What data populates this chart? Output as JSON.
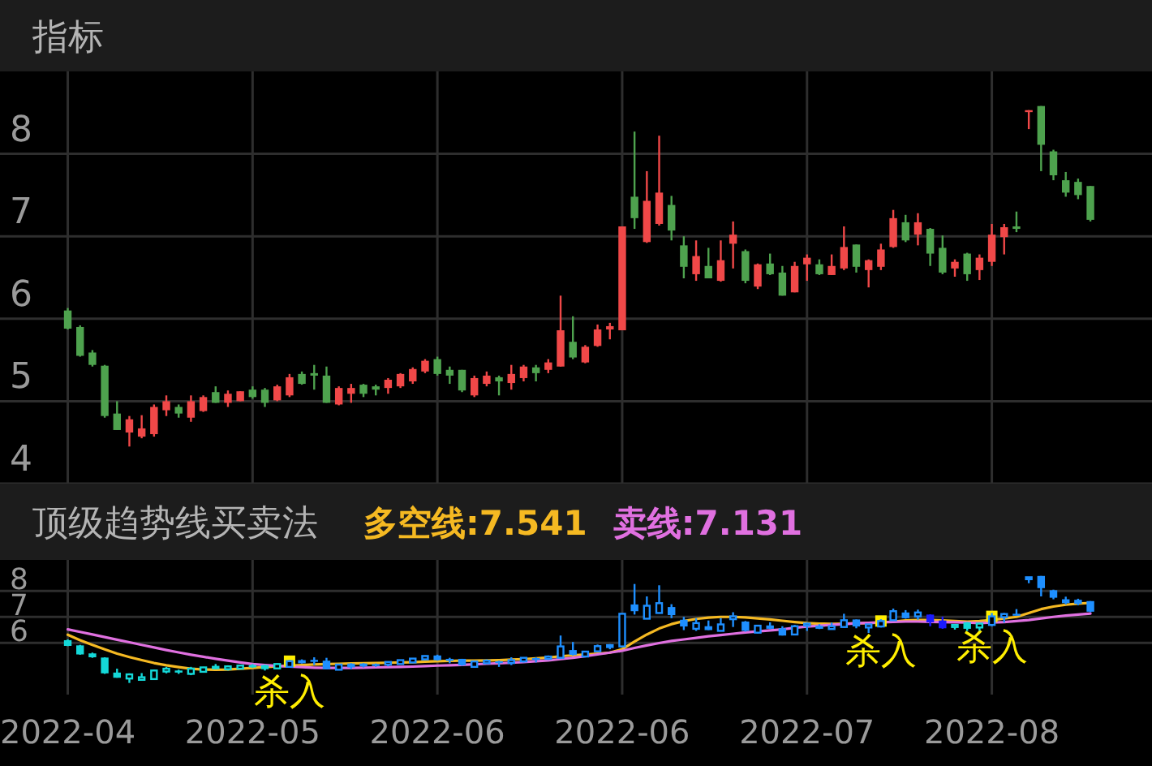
{
  "chart_data": [
    {
      "type": "candlestick",
      "title": "指标",
      "categories": [
        "2022-04",
        null,
        null,
        null,
        null,
        null,
        null,
        null,
        null,
        null,
        null,
        null,
        null,
        null,
        null,
        "2022-05",
        null,
        null,
        null,
        null,
        null,
        null,
        null,
        null,
        null,
        null,
        null,
        null,
        null,
        null,
        "2022-06",
        null,
        null,
        null,
        null,
        null,
        null,
        null,
        null,
        null,
        null,
        null,
        null,
        null,
        null,
        "2022-06",
        null,
        null,
        null,
        null,
        null,
        null,
        null,
        null,
        null,
        null,
        null,
        null,
        null,
        null,
        "2022-07",
        null,
        null,
        null,
        null,
        null,
        null,
        null,
        null,
        null,
        null,
        null,
        null,
        null,
        null,
        "2022-08",
        null,
        null,
        null,
        null,
        null,
        null,
        null,
        null
      ],
      "ohlc": [
        [
          6.1,
          6.13,
          5.87,
          5.88
        ],
        [
          5.9,
          5.92,
          5.54,
          5.55
        ],
        [
          5.59,
          5.62,
          5.42,
          5.44
        ],
        [
          5.43,
          5.44,
          4.8,
          4.82
        ],
        [
          4.85,
          5.0,
          4.65,
          4.65
        ],
        [
          4.62,
          4.82,
          4.45,
          4.78
        ],
        [
          4.57,
          4.83,
          4.55,
          4.67
        ],
        [
          4.6,
          4.96,
          4.57,
          4.93
        ],
        [
          4.89,
          5.07,
          4.82,
          5.0
        ],
        [
          4.93,
          4.96,
          4.8,
          4.85
        ],
        [
          4.8,
          5.07,
          4.75,
          5.0
        ],
        [
          4.88,
          5.07,
          4.87,
          5.05
        ],
        [
          5.11,
          5.18,
          4.98,
          4.98
        ],
        [
          4.98,
          5.13,
          4.93,
          5.09
        ],
        [
          5.0,
          5.12,
          5.0,
          5.12
        ],
        [
          5.14,
          5.18,
          5.03,
          5.05
        ],
        [
          5.14,
          5.16,
          4.93,
          4.98
        ],
        [
          5.01,
          5.2,
          5.0,
          5.18
        ],
        [
          5.07,
          5.33,
          5.05,
          5.29
        ],
        [
          5.33,
          5.36,
          5.2,
          5.21
        ],
        [
          5.34,
          5.44,
          5.14,
          5.31
        ],
        [
          5.31,
          5.42,
          4.98,
          4.98
        ],
        [
          4.96,
          5.18,
          4.95,
          5.16
        ],
        [
          5.09,
          5.21,
          4.98,
          5.16
        ],
        [
          5.2,
          5.21,
          5.05,
          5.09
        ],
        [
          5.18,
          5.2,
          5.07,
          5.14
        ],
        [
          5.16,
          5.28,
          5.09,
          5.26
        ],
        [
          5.18,
          5.34,
          5.16,
          5.33
        ],
        [
          5.24,
          5.41,
          5.21,
          5.39
        ],
        [
          5.36,
          5.51,
          5.34,
          5.49
        ],
        [
          5.51,
          5.54,
          5.31,
          5.33
        ],
        [
          5.38,
          5.42,
          5.21,
          5.31
        ],
        [
          5.38,
          5.38,
          5.11,
          5.13
        ],
        [
          5.07,
          5.31,
          5.05,
          5.28
        ],
        [
          5.21,
          5.36,
          5.18,
          5.31
        ],
        [
          5.29,
          5.31,
          5.07,
          5.24
        ],
        [
          5.22,
          5.44,
          5.14,
          5.33
        ],
        [
          5.28,
          5.44,
          5.24,
          5.42
        ],
        [
          5.41,
          5.44,
          5.24,
          5.34
        ],
        [
          5.38,
          5.51,
          5.34,
          5.47
        ],
        [
          5.42,
          6.28,
          5.42,
          5.86
        ],
        [
          5.72,
          6.03,
          5.51,
          5.53
        ],
        [
          5.47,
          5.68,
          5.46,
          5.66
        ],
        [
          5.67,
          5.93,
          5.66,
          5.87
        ],
        [
          5.87,
          5.95,
          5.75,
          5.91
        ],
        [
          5.86,
          7.12,
          5.86,
          7.12
        ],
        [
          7.48,
          8.27,
          7.09,
          7.22
        ],
        [
          6.93,
          7.79,
          6.92,
          7.43
        ],
        [
          7.15,
          8.22,
          7.13,
          7.53
        ],
        [
          7.38,
          7.49,
          6.95,
          7.07
        ],
        [
          6.89,
          7.0,
          6.49,
          6.63
        ],
        [
          6.54,
          6.95,
          6.46,
          6.76
        ],
        [
          6.64,
          6.86,
          6.49,
          6.49
        ],
        [
          6.46,
          6.95,
          6.45,
          6.71
        ],
        [
          6.91,
          7.18,
          6.61,
          7.02
        ],
        [
          6.82,
          6.84,
          6.43,
          6.46
        ],
        [
          6.39,
          6.67,
          6.36,
          6.66
        ],
        [
          6.67,
          6.79,
          6.53,
          6.54
        ],
        [
          6.56,
          6.64,
          6.28,
          6.28
        ],
        [
          6.32,
          6.69,
          6.32,
          6.64
        ],
        [
          6.66,
          6.78,
          6.46,
          6.74
        ],
        [
          6.66,
          6.72,
          6.53,
          6.54
        ],
        [
          6.53,
          6.78,
          6.53,
          6.64
        ],
        [
          6.61,
          7.12,
          6.59,
          6.87
        ],
        [
          6.9,
          6.9,
          6.56,
          6.63
        ],
        [
          6.59,
          6.72,
          6.38,
          6.71
        ],
        [
          6.63,
          6.91,
          6.59,
          6.84
        ],
        [
          6.87,
          7.32,
          6.86,
          7.22
        ],
        [
          7.17,
          7.26,
          6.93,
          6.95
        ],
        [
          7.02,
          7.28,
          6.89,
          7.17
        ],
        [
          7.09,
          7.1,
          6.64,
          6.79
        ],
        [
          6.86,
          7.01,
          6.54,
          6.56
        ],
        [
          6.61,
          6.72,
          6.51,
          6.69
        ],
        [
          6.79,
          6.8,
          6.46,
          6.54
        ],
        [
          6.59,
          6.78,
          6.47,
          6.74
        ],
        [
          6.69,
          7.15,
          6.64,
          7.02
        ],
        [
          6.99,
          7.15,
          6.78,
          7.11
        ],
        [
          7.12,
          7.3,
          7.05,
          7.09
        ],
        [
          8.51,
          8.53,
          8.3,
          8.53
        ],
        [
          8.58,
          8.58,
          7.79,
          8.11
        ],
        [
          8.03,
          8.05,
          7.68,
          7.74
        ],
        [
          7.68,
          7.78,
          7.48,
          7.53
        ],
        [
          7.66,
          7.7,
          7.45,
          7.5
        ],
        [
          7.61,
          7.61,
          7.18,
          7.2
        ]
      ],
      "colors": [
        "#4ea24e",
        "#4ea24e",
        "#4ea24e",
        "#4ea24e",
        "#4ea24e",
        "#f04848",
        "#f04848",
        "#f04848",
        "#f04848",
        "#4ea24e",
        "#f04848",
        "#f04848",
        "#4ea24e",
        "#f04848",
        "#f04848",
        "#4ea24e",
        "#4ea24e",
        "#f04848",
        "#f04848",
        "#4ea24e",
        "#4ea24e",
        "#4ea24e",
        "#f04848",
        "#f04848",
        "#4ea24e",
        "#4ea24e",
        "#f04848",
        "#f04848",
        "#f04848",
        "#f04848",
        "#4ea24e",
        "#4ea24e",
        "#4ea24e",
        "#f04848",
        "#f04848",
        "#4ea24e",
        "#f04848",
        "#f04848",
        "#4ea24e",
        "#f04848",
        "#f04848",
        "#4ea24e",
        "#f04848",
        "#f04848",
        "#f04848",
        "#f04848",
        "#4ea24e",
        "#f04848",
        "#f04848",
        "#4ea24e",
        "#4ea24e",
        "#f04848",
        "#4ea24e",
        "#f04848",
        "#f04848",
        "#4ea24e",
        "#f04848",
        "#4ea24e",
        "#4ea24e",
        "#f04848",
        "#f04848",
        "#4ea24e",
        "#f04848",
        "#f04848",
        "#4ea24e",
        "#f04848",
        "#f04848",
        "#f04848",
        "#4ea24e",
        "#f04848",
        "#4ea24e",
        "#4ea24e",
        "#f04848",
        "#4ea24e",
        "#f04848",
        "#f04848",
        "#f04848",
        "#4ea24e",
        "#f04848",
        "#4ea24e",
        "#4ea24e",
        "#4ea24e",
        "#4ea24e",
        "#4ea24e"
      ],
      "ylim": [
        4,
        9
      ],
      "yticks": [
        4,
        5,
        6,
        7,
        8
      ],
      "tick_labels": "y",
      "grid": true
    },
    {
      "type": "candlestick",
      "title": "顶级趋势线买卖法",
      "categories": [
        "2022-04",
        null,
        null,
        null,
        null,
        null,
        null,
        null,
        null,
        null,
        null,
        null,
        null,
        null,
        null,
        "2022-05",
        null,
        null,
        null,
        null,
        null,
        null,
        null,
        null,
        null,
        null,
        null,
        null,
        null,
        null,
        "2022-06",
        null,
        null,
        null,
        null,
        null,
        null,
        null,
        null,
        null,
        null,
        null,
        null,
        null,
        null,
        "2022-06",
        null,
        null,
        null,
        null,
        null,
        null,
        null,
        null,
        null,
        null,
        null,
        null,
        null,
        null,
        "2022-07",
        null,
        null,
        null,
        null,
        null,
        null,
        null,
        null,
        null,
        null,
        null,
        null,
        null,
        null,
        "2022-08",
        null,
        null,
        null,
        null,
        null,
        null,
        null,
        null
      ],
      "ohlc": [
        [
          6.1,
          6.13,
          5.87,
          5.88
        ],
        [
          5.9,
          5.92,
          5.54,
          5.55
        ],
        [
          5.59,
          5.62,
          5.42,
          5.44
        ],
        [
          5.43,
          5.44,
          4.8,
          4.82
        ],
        [
          4.85,
          5.0,
          4.65,
          4.65
        ],
        [
          4.62,
          4.82,
          4.45,
          4.78
        ],
        [
          4.57,
          4.83,
          4.55,
          4.67
        ],
        [
          4.6,
          4.96,
          4.57,
          4.93
        ],
        [
          4.89,
          5.07,
          4.82,
          5.0
        ],
        [
          4.93,
          4.96,
          4.8,
          4.85
        ],
        [
          4.8,
          5.07,
          4.75,
          5.0
        ],
        [
          4.88,
          5.07,
          4.87,
          5.05
        ],
        [
          5.11,
          5.18,
          4.98,
          4.98
        ],
        [
          4.98,
          5.13,
          4.93,
          5.09
        ],
        [
          5.0,
          5.12,
          5.0,
          5.12
        ],
        [
          5.14,
          5.18,
          5.03,
          5.05
        ],
        [
          5.14,
          5.16,
          4.93,
          4.98
        ],
        [
          5.01,
          5.2,
          5.0,
          5.18
        ],
        [
          5.07,
          5.33,
          5.05,
          5.29
        ],
        [
          5.33,
          5.36,
          5.2,
          5.21
        ],
        [
          5.34,
          5.44,
          5.14,
          5.31
        ],
        [
          5.31,
          5.42,
          4.98,
          4.98
        ],
        [
          4.96,
          5.18,
          4.95,
          5.16
        ],
        [
          5.09,
          5.21,
          4.98,
          5.16
        ],
        [
          5.2,
          5.21,
          5.05,
          5.09
        ],
        [
          5.18,
          5.2,
          5.07,
          5.14
        ],
        [
          5.16,
          5.28,
          5.09,
          5.26
        ],
        [
          5.18,
          5.34,
          5.16,
          5.33
        ],
        [
          5.24,
          5.41,
          5.21,
          5.39
        ],
        [
          5.36,
          5.51,
          5.34,
          5.49
        ],
        [
          5.51,
          5.54,
          5.31,
          5.33
        ],
        [
          5.38,
          5.42,
          5.21,
          5.31
        ],
        [
          5.38,
          5.38,
          5.11,
          5.13
        ],
        [
          5.07,
          5.31,
          5.05,
          5.28
        ],
        [
          5.21,
          5.36,
          5.18,
          5.31
        ],
        [
          5.29,
          5.31,
          5.07,
          5.24
        ],
        [
          5.22,
          5.44,
          5.14,
          5.33
        ],
        [
          5.28,
          5.44,
          5.24,
          5.42
        ],
        [
          5.41,
          5.44,
          5.24,
          5.34
        ],
        [
          5.38,
          5.51,
          5.34,
          5.47
        ],
        [
          5.42,
          6.28,
          5.42,
          5.86
        ],
        [
          5.72,
          6.03,
          5.51,
          5.53
        ],
        [
          5.47,
          5.68,
          5.46,
          5.66
        ],
        [
          5.67,
          5.93,
          5.66,
          5.87
        ],
        [
          5.87,
          5.95,
          5.75,
          5.91
        ],
        [
          5.86,
          7.12,
          5.86,
          7.12
        ],
        [
          7.48,
          8.27,
          7.09,
          7.22
        ],
        [
          6.93,
          7.79,
          6.92,
          7.43
        ],
        [
          7.15,
          8.22,
          7.13,
          7.53
        ],
        [
          7.38,
          7.49,
          6.95,
          7.07
        ],
        [
          6.89,
          7.0,
          6.49,
          6.63
        ],
        [
          6.54,
          6.95,
          6.46,
          6.76
        ],
        [
          6.64,
          6.86,
          6.49,
          6.49
        ],
        [
          6.46,
          6.95,
          6.45,
          6.71
        ],
        [
          6.91,
          7.18,
          6.61,
          7.02
        ],
        [
          6.82,
          6.84,
          6.43,
          6.46
        ],
        [
          6.39,
          6.67,
          6.36,
          6.66
        ],
        [
          6.67,
          6.79,
          6.53,
          6.54
        ],
        [
          6.56,
          6.64,
          6.28,
          6.28
        ],
        [
          6.32,
          6.69,
          6.32,
          6.64
        ],
        [
          6.66,
          6.78,
          6.46,
          6.74
        ],
        [
          6.66,
          6.72,
          6.53,
          6.54
        ],
        [
          6.53,
          6.78,
          6.53,
          6.64
        ],
        [
          6.61,
          7.12,
          6.59,
          6.87
        ],
        [
          6.9,
          6.9,
          6.56,
          6.63
        ],
        [
          6.59,
          6.72,
          6.38,
          6.71
        ],
        [
          6.63,
          6.91,
          6.59,
          6.84
        ],
        [
          6.87,
          7.32,
          6.86,
          7.22
        ],
        [
          7.17,
          7.26,
          6.93,
          6.95
        ],
        [
          7.02,
          7.28,
          6.89,
          7.17
        ],
        [
          7.09,
          7.1,
          6.64,
          6.79
        ],
        [
          6.86,
          7.01,
          6.54,
          6.56
        ],
        [
          6.61,
          6.72,
          6.51,
          6.69
        ],
        [
          6.79,
          6.8,
          6.46,
          6.54
        ],
        [
          6.59,
          6.78,
          6.47,
          6.74
        ],
        [
          6.69,
          7.15,
          6.64,
          7.02
        ],
        [
          6.99,
          7.15,
          6.78,
          7.11
        ],
        [
          7.12,
          7.3,
          7.05,
          7.09
        ],
        [
          8.51,
          8.53,
          8.3,
          8.53
        ],
        [
          8.58,
          8.58,
          7.79,
          8.11
        ],
        [
          8.03,
          8.05,
          7.68,
          7.74
        ],
        [
          7.68,
          7.78,
          7.48,
          7.53
        ],
        [
          7.66,
          7.7,
          7.45,
          7.5
        ],
        [
          7.61,
          7.61,
          7.18,
          7.2
        ]
      ],
      "colors": [
        "#14d8d8",
        "#14d8d8",
        "#14d8d8",
        "#14d8d8",
        "#14d8d8",
        "#14d8d8",
        "#14d8d8",
        "#14d8d8",
        "#14d8d8",
        "#14d8d8",
        "#14d8d8",
        "#14d8d8",
        "#14d8d8",
        "#14d8d8",
        "#14d8d8",
        "#14d8d8",
        "#14d8d8",
        "#14d8d8",
        "#1e8fff",
        "#1e8fff",
        "#1e8fff",
        "#1e8fff",
        "#1e8fff",
        "#1e8fff",
        "#1e8fff",
        "#1e8fff",
        "#1e8fff",
        "#1e8fff",
        "#1e8fff",
        "#1e8fff",
        "#1e8fff",
        "#1e8fff",
        "#1e8fff",
        "#1e8fff",
        "#1e8fff",
        "#1e8fff",
        "#1e8fff",
        "#1e8fff",
        "#1e8fff",
        "#1e8fff",
        "#1e8fff",
        "#1e8fff",
        "#1e8fff",
        "#1e8fff",
        "#1e8fff",
        "#1e8fff",
        "#1e8fff",
        "#1e8fff",
        "#1e8fff",
        "#1e8fff",
        "#1e8fff",
        "#1e8fff",
        "#1e8fff",
        "#1e8fff",
        "#1e8fff",
        "#1e8fff",
        "#1e8fff",
        "#1e8fff",
        "#1e8fff",
        "#1e8fff",
        "#1e8fff",
        "#1e8fff",
        "#1e8fff",
        "#1e8fff",
        "#1e8fff",
        "#1e8fff",
        "#1e8fff",
        "#1e8fff",
        "#1e8fff",
        "#1e8fff",
        "#1a1aff",
        "#1a1aff",
        "#14d8d8",
        "#14d8d8",
        "#14d8d8",
        "#1e8fff",
        "#1e8fff",
        "#1e8fff",
        "#1e8fff",
        "#1e8fff",
        "#1e8fff",
        "#1e8fff",
        "#1e8fff",
        "#1e8fff"
      ],
      "series": [
        {
          "name": "多空线:7.541",
          "type": "line",
          "color": "#f5b922",
          "values": [
            6.31,
            6.1,
            5.92,
            5.75,
            5.58,
            5.45,
            5.33,
            5.22,
            5.13,
            5.06,
            5.0,
            4.97,
            4.96,
            4.97,
            5.0,
            5.03,
            5.06,
            5.09,
            5.12,
            5.14,
            5.16,
            5.18,
            5.19,
            5.2,
            5.21,
            5.22,
            5.23,
            5.24,
            5.25,
            5.27,
            5.29,
            5.3,
            5.31,
            5.31,
            5.32,
            5.33,
            5.35,
            5.37,
            5.4,
            5.43,
            5.48,
            5.52,
            5.55,
            5.58,
            5.62,
            5.75,
            6.05,
            6.32,
            6.55,
            6.72,
            6.84,
            6.92,
            6.97,
            7.0,
            7.0,
            6.98,
            6.94,
            6.9,
            6.85,
            6.8,
            6.76,
            6.74,
            6.73,
            6.74,
            6.75,
            6.76,
            6.78,
            6.82,
            6.86,
            6.88,
            6.88,
            6.86,
            6.84,
            6.82,
            6.84,
            6.88,
            6.94,
            7.0,
            7.15,
            7.3,
            7.4,
            7.47,
            7.51,
            7.54
          ]
        },
        {
          "name": "卖线:7.131",
          "type": "line",
          "color": "#e070e0",
          "values": [
            6.52,
            6.42,
            6.32,
            6.22,
            6.12,
            6.02,
            5.92,
            5.82,
            5.72,
            5.63,
            5.54,
            5.46,
            5.38,
            5.31,
            5.24,
            5.18,
            5.14,
            5.11,
            5.08,
            5.06,
            5.04,
            5.03,
            5.03,
            5.03,
            5.04,
            5.05,
            5.06,
            5.07,
            5.08,
            5.1,
            5.12,
            5.13,
            5.15,
            5.17,
            5.19,
            5.21,
            5.23,
            5.26,
            5.29,
            5.32,
            5.37,
            5.42,
            5.48,
            5.55,
            5.62,
            5.69,
            5.8,
            5.9,
            5.99,
            6.07,
            6.13,
            6.19,
            6.25,
            6.3,
            6.35,
            6.4,
            6.44,
            6.48,
            6.52,
            6.58,
            6.63,
            6.66,
            6.69,
            6.72,
            6.75,
            6.77,
            6.79,
            6.81,
            6.82,
            6.82,
            6.81,
            6.8,
            6.79,
            6.78,
            6.76,
            6.78,
            6.8,
            6.84,
            6.88,
            6.94,
            7.0,
            7.05,
            7.09,
            7.13
          ]
        },
        {
          "type": "scatter",
          "color": "#ffee00",
          "marker": "square",
          "values": [
            null,
            null,
            null,
            null,
            null,
            null,
            null,
            null,
            null,
            null,
            null,
            null,
            null,
            null,
            null,
            null,
            null,
            null,
            5.29,
            null,
            null,
            null,
            null,
            null,
            null,
            null,
            null,
            null,
            null,
            null,
            null,
            null,
            null,
            null,
            null,
            null,
            null,
            null,
            null,
            null,
            null,
            null,
            null,
            null,
            null,
            null,
            null,
            null,
            null,
            null,
            null,
            null,
            null,
            null,
            null,
            null,
            null,
            null,
            null,
            null,
            null,
            null,
            null,
            null,
            null,
            null,
            6.84,
            null,
            null,
            null,
            null,
            null,
            null,
            null,
            null,
            7.02,
            null,
            null,
            null,
            null,
            null,
            null,
            null,
            null
          ],
          "value_labels": [
            null,
            null,
            null,
            null,
            null,
            null,
            null,
            null,
            null,
            null,
            null,
            null,
            null,
            null,
            null,
            null,
            null,
            null,
            "杀入",
            null,
            null,
            null,
            null,
            null,
            null,
            null,
            null,
            null,
            null,
            null,
            null,
            null,
            null,
            null,
            null,
            null,
            null,
            null,
            null,
            null,
            null,
            null,
            null,
            null,
            null,
            null,
            null,
            null,
            null,
            null,
            null,
            null,
            null,
            null,
            null,
            null,
            null,
            null,
            null,
            null,
            null,
            null,
            null,
            null,
            null,
            null,
            "杀入",
            null,
            null,
            null,
            null,
            null,
            null,
            null,
            null,
            "杀入",
            null,
            null,
            null,
            null,
            null,
            null,
            null,
            null
          ]
        }
      ],
      "ylim": [
        4,
        9.2
      ],
      "yticks": [
        6,
        7,
        8
      ],
      "grid": true,
      "legend": "top left"
    }
  ]
}
